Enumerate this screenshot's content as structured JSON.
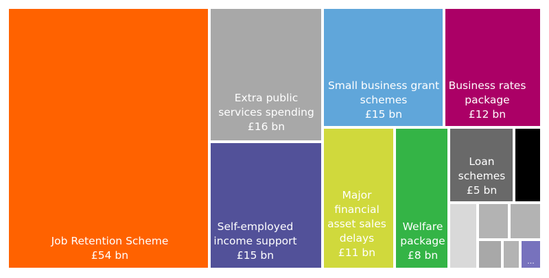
{
  "chart_data": {
    "type": "treemap",
    "title": "",
    "unit": "£ bn",
    "items": [
      {
        "name": "Job Retention Scheme",
        "value_label": "£54 bn",
        "value": 54,
        "color": "#ff6200"
      },
      {
        "name": "Extra public services spending",
        "value_label": "£16 bn",
        "value": 16,
        "color": "#a8a8a8"
      },
      {
        "name": "Self-employed income support",
        "value_label": "£15 bn",
        "value": 15,
        "color": "#525199"
      },
      {
        "name": "Small business grant schemes",
        "value_label": "£15 bn",
        "value": 15,
        "color": "#60a6da"
      },
      {
        "name": "Business rates package",
        "value_label": "£12 bn",
        "value": 12,
        "color": "#ab0066"
      },
      {
        "name": "Major financial asset sales delays",
        "value_label": "£11 bn",
        "value": 11,
        "color": "#d0d93c"
      },
      {
        "name": "Welfare package",
        "value_label": "£8 bn",
        "value": 8,
        "color": "#34b446"
      },
      {
        "name": "Loan schemes",
        "value_label": "£5 bn",
        "value": 5,
        "color": "#696969"
      },
      {
        "name": "",
        "value_label": "",
        "color": "#000000"
      },
      {
        "name": "",
        "value_label": "",
        "color": "#d9d9d9"
      },
      {
        "name": "",
        "value_label": "",
        "color": "#b3b3b3"
      },
      {
        "name": "",
        "value_label": "",
        "color": "#b3b3b3"
      },
      {
        "name": "",
        "value_label": "",
        "color": "#a8a8a8"
      },
      {
        "name": "",
        "value_label": "",
        "color": "#b3b3b3"
      },
      {
        "name": "...",
        "value_label": "",
        "color": "#7772bd"
      }
    ]
  }
}
